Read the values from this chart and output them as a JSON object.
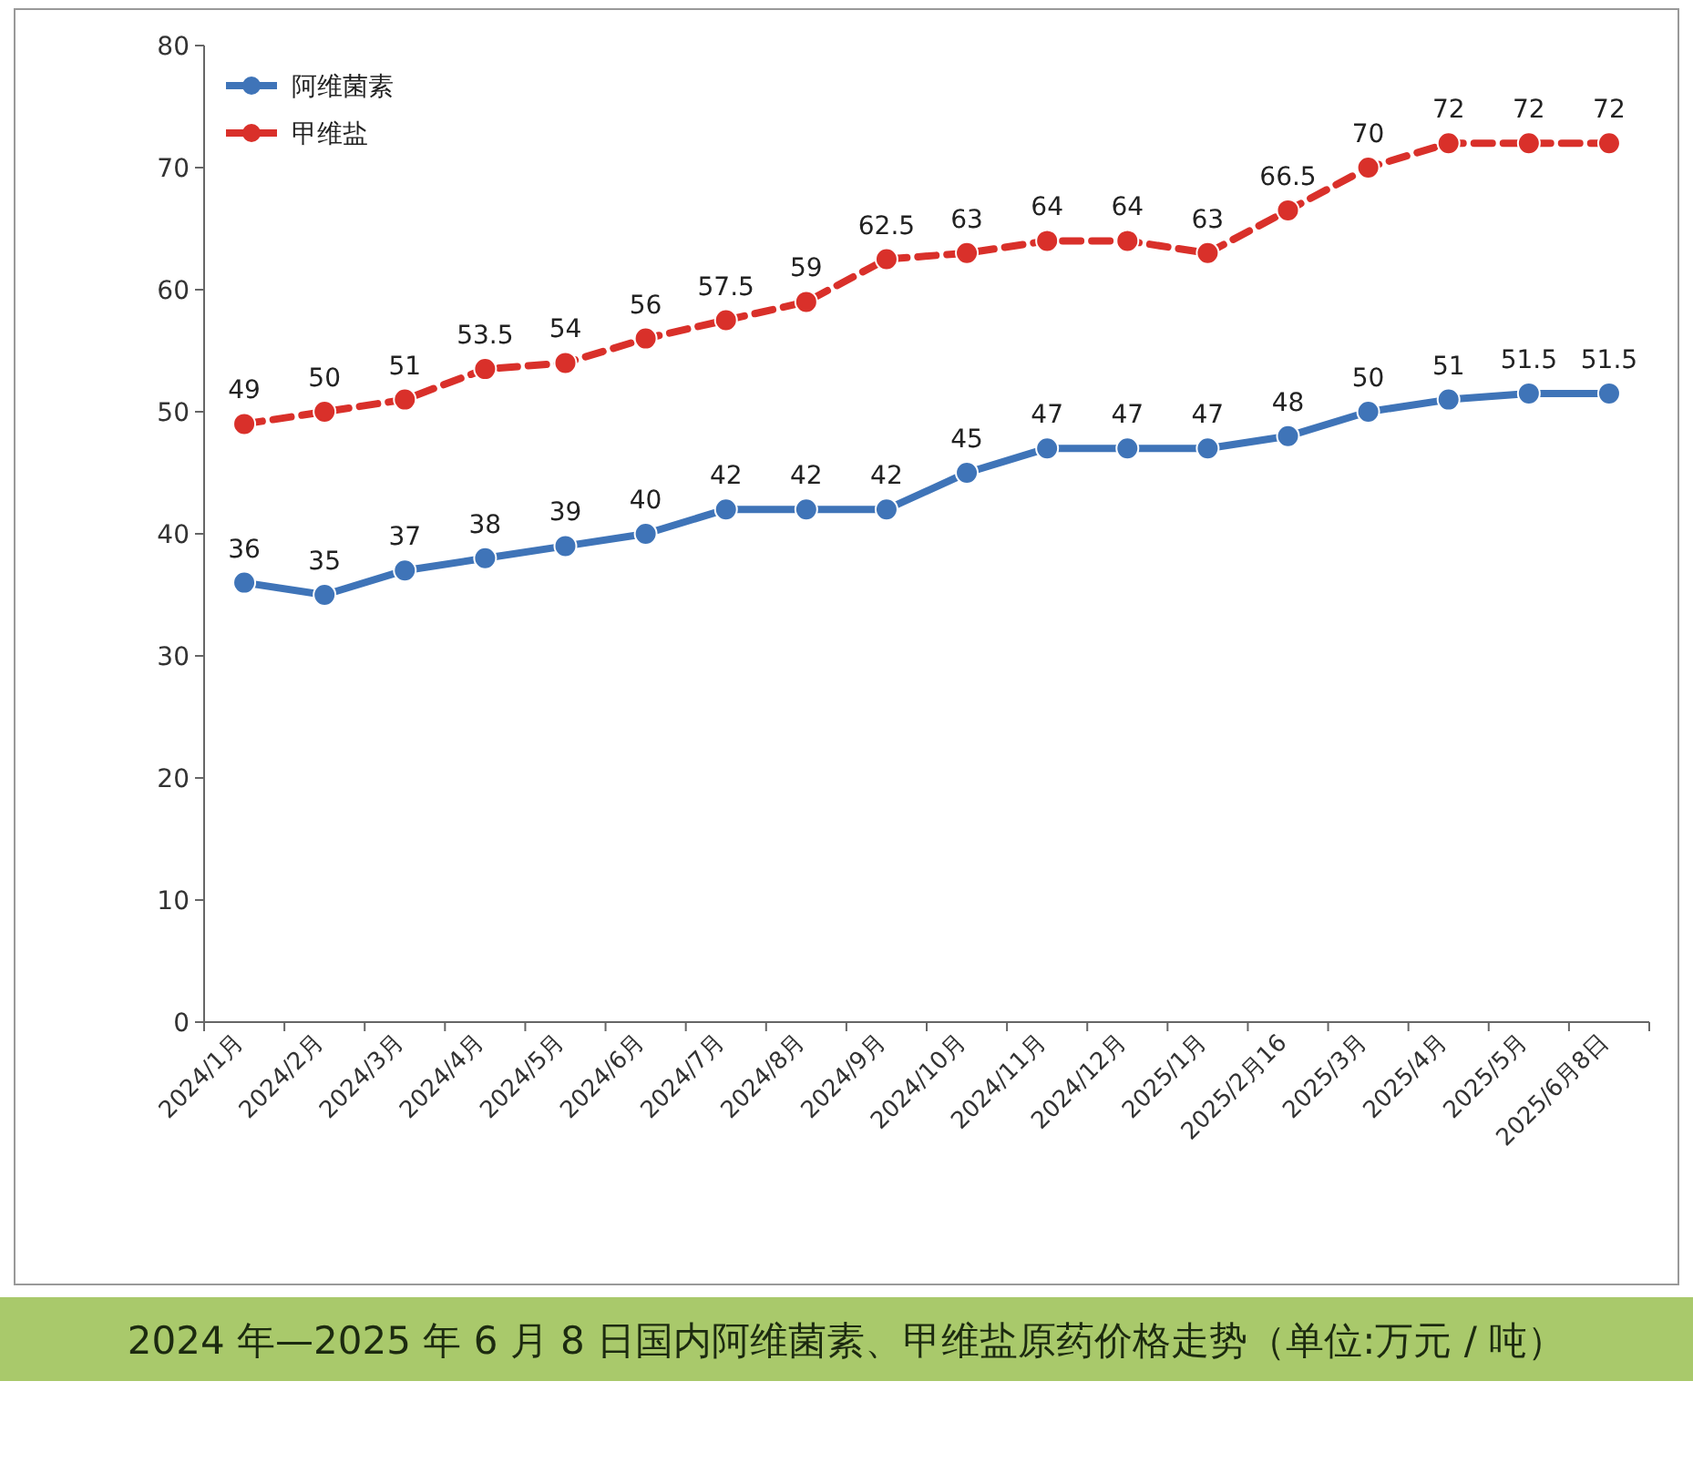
{
  "chart_data": {
    "type": "line",
    "title": "2024 年—2025 年 6 月 8 日国内阿维菌素、甲维盐原药价格走势（单位:万元 / 吨）",
    "categories": [
      "2024/1月",
      "2024/2月",
      "2024/3月",
      "2024/4月",
      "2024/5月",
      "2024/6月",
      "2024/7月",
      "2024/8月",
      "2024/9月",
      "2024/10月",
      "2024/11月",
      "2024/12月",
      "2025/1月",
      "2025/2月16",
      "2025/3月",
      "2025/4月",
      "2025/5月",
      "2025/6月8日"
    ],
    "series": [
      {
        "name": "阿维菌素",
        "color": "#3f74b8",
        "line_style": "solid",
        "values": [
          36,
          35,
          37,
          38,
          39,
          40,
          42,
          42,
          42,
          45,
          47,
          47,
          47,
          48,
          50,
          51,
          51.5,
          51.5
        ]
      },
      {
        "name": "甲维盐",
        "color": "#d9302a",
        "line_style": "dashed",
        "values": [
          49,
          50,
          51,
          53.5,
          54,
          56,
          57.5,
          59,
          62.5,
          63,
          64,
          64,
          63,
          66.5,
          70,
          72,
          72,
          72
        ]
      }
    ],
    "ylim": [
      0,
      80
    ],
    "yticks": [
      0,
      10,
      20,
      30,
      40,
      50,
      60,
      70,
      80
    ],
    "grid": false,
    "legend": "top left",
    "marker": "circle",
    "data_labels": true
  }
}
